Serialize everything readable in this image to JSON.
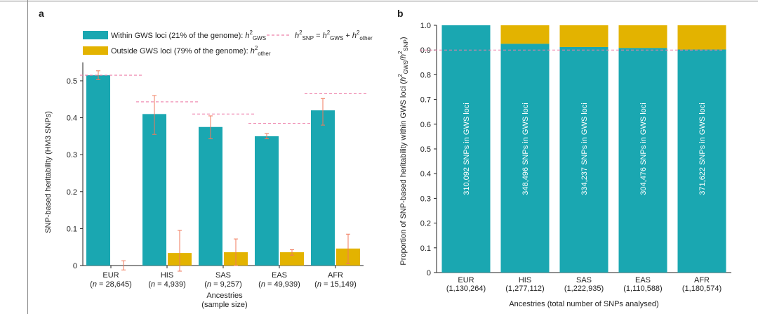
{
  "colors": {
    "gws": "#1aa7b1",
    "other": "#e3b300",
    "error": "#f07a5c",
    "dashed": "#ee7fa9",
    "axis": "#222222",
    "frame": "#888888"
  },
  "chart_data": [
    {
      "panel": "a",
      "type": "bar",
      "xlabel": "Ancestries",
      "xlabel2": "(sample size)",
      "ylabel": "SNP-based heritability (HM3 SNPs)",
      "ylim": [
        0,
        0.55
      ],
      "yticks": [
        "0",
        "0.1",
        "0.2",
        "0.3",
        "0.4",
        "0.5"
      ],
      "categories": [
        {
          "name": "EUR",
          "n": "(n = 28,645)"
        },
        {
          "name": "HIS",
          "n": "(n = 4,939)"
        },
        {
          "name": "SAS",
          "n": "(n = 9,257)"
        },
        {
          "name": "EAS",
          "n": "(n = 49,939)"
        },
        {
          "name": "AFR",
          "n": "(n = 15,149)"
        }
      ],
      "series": [
        {
          "name": "Within GWS loci (21% of the genome): h2GWS",
          "values": [
            0.515,
            0.41,
            0.375,
            0.35,
            0.42
          ],
          "err_low": [
            0.503,
            0.355,
            0.343,
            0.343,
            0.38
          ],
          "err_high": [
            0.527,
            0.46,
            0.405,
            0.357,
            0.452
          ]
        },
        {
          "name": "Outside GWS loci (79% of the genome): h2other",
          "values": [
            0.0,
            0.034,
            0.036,
            0.036,
            0.046
          ],
          "err_low": [
            -0.012,
            -0.028,
            0.0,
            0.028,
            0.005
          ],
          "err_high": [
            0.013,
            0.095,
            0.072,
            0.043,
            0.085
          ]
        }
      ],
      "total_h2snp": [
        0.515,
        0.443,
        0.41,
        0.385,
        0.465
      ],
      "legend": {
        "gws_text": "Within GWS loci (21% of the genome): ",
        "gws_h": "h",
        "gws_sup": "2",
        "gws_sub": "GWS",
        "other_text": "Outside GWS loci (79% of the genome): ",
        "other_h": "h",
        "other_sup": "2",
        "other_sub": "other",
        "dash_h1": "h",
        "dash_sup1": "2",
        "dash_sub1": "SNP",
        "dash_eq": " = ",
        "dash_h2": "h",
        "dash_sup2": "2",
        "dash_sub2": "GWS",
        "dash_plus": " + ",
        "dash_h3": "h",
        "dash_sup3": "2",
        "dash_sub3": "other"
      }
    },
    {
      "panel": "b",
      "type": "bar",
      "stacked": true,
      "xlabel": "Ancestries (total number of SNPs analysed)",
      "ylabel_pre": "Proportion of SNP-based heritability within GWS loci (",
      "ylabel_h1": "h",
      "ylabel_sup1": "2",
      "ylabel_sub1": "GWS",
      "ylabel_slash": "/",
      "ylabel_h2": "h",
      "ylabel_sup2": "2",
      "ylabel_sub2": "SNP",
      "ylabel_post": ")",
      "ylim": [
        0,
        1.0
      ],
      "yticks": [
        "0",
        "0.1",
        "0.2",
        "0.3",
        "0.4",
        "0.5",
        "0.6",
        "0.7",
        "0.8",
        "0.9",
        "1.0"
      ],
      "reference_line": 0.9,
      "categories": [
        {
          "name": "EUR",
          "n": "(1,130,264)"
        },
        {
          "name": "HIS",
          "n": "(1,277,112)"
        },
        {
          "name": "SAS",
          "n": "(1,222,935)"
        },
        {
          "name": "EAS",
          "n": "(1,110,588)"
        },
        {
          "name": "AFR",
          "n": "(1,180,574)"
        }
      ],
      "proportion_gws": [
        1.0,
        0.925,
        0.912,
        0.908,
        0.902
      ],
      "bar_labels": [
        "310,092 SNPs in GWS loci",
        "348,496 SNPs in GWS loci",
        "334,237 SNPs in GWS loci",
        "304,476 SNPs in GWS loci",
        "371,622 SNPs in GWS loci"
      ]
    }
  ]
}
